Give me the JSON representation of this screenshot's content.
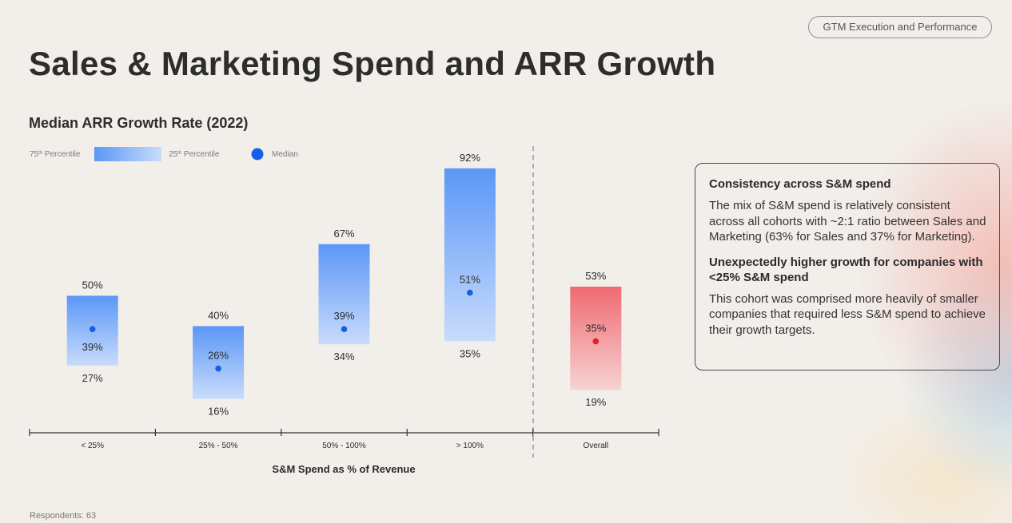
{
  "header": {
    "tag_label": "GTM Execution and Performance",
    "title": "Sales & Marketing Spend and ARR Growth"
  },
  "chart_data": {
    "type": "range-bar",
    "title": "Median ARR Growth Rate (2022)",
    "xlabel": "S&M Spend as % of Revenue",
    "ylabel": "",
    "legend": {
      "p75_label": "75th Percentile",
      "p75_sup": "th",
      "p25_label": "25th Percentile",
      "p25_sup": "th",
      "median_label": "Median",
      "position": "top-left"
    },
    "categories": [
      "< 25%",
      "25% - 50%",
      "50% - 100%",
      "> 100%",
      "Overall"
    ],
    "series": [
      {
        "name": "75th Percentile",
        "values": [
          50,
          40,
          67,
          92,
          53
        ]
      },
      {
        "name": "Median",
        "values": [
          39,
          26,
          39,
          51,
          35
        ]
      },
      {
        "name": "25th Percentile",
        "values": [
          27,
          16,
          34,
          35,
          19
        ]
      }
    ],
    "highlight_category": "Overall",
    "colors": {
      "cohort_top": "#5b97f7",
      "cohort_bottom": "#c8dcfb",
      "overall_top": "#ee6b70",
      "overall_bottom": "#f7d2d3",
      "median_dot": "#1460e6",
      "overall_dot": "#e3202b"
    }
  },
  "callout": {
    "heading1": "Consistency across S&M spend",
    "body1": "The mix of S&M spend is relatively consistent across all cohorts with ~2:1 ratio between Sales and Marketing (63% for Sales and 37% for Marketing).",
    "heading2": "Unexpectedly higher growth for companies with <25% S&M spend",
    "body2": "This cohort was comprised more heavily of smaller companies that required less S&M spend to achieve their growth targets."
  },
  "footnote": "Respondents: 63"
}
